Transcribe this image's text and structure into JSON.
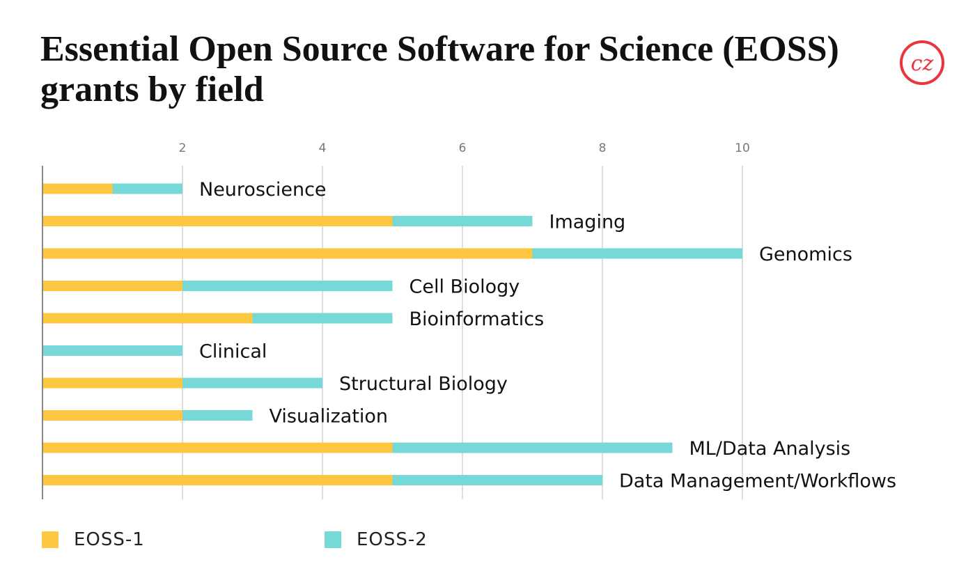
{
  "colors": {
    "series_1": "#FDC742",
    "series_2": "#76D9D8",
    "grid": "#DDDDDD",
    "axis": "#888888",
    "brand": "#E8363C"
  },
  "logo": {
    "icon": "cz-logo-icon",
    "text": "cz"
  },
  "chart_data": {
    "type": "bar",
    "orientation": "horizontal",
    "stacked": true,
    "title": "Essential Open Source Software for Science (EOSS) grants by field",
    "xlabel": "",
    "ylabel": "",
    "xlim": [
      0,
      12
    ],
    "xticks": [
      2,
      4,
      6,
      8,
      10
    ],
    "grid": true,
    "legend_position": "bottom",
    "categories": [
      "Neuroscience",
      "Imaging",
      "Genomics",
      "Cell Biology",
      "Bioinformatics",
      "Clinical",
      "Structural Biology",
      "Visualization",
      "ML/Data Analysis",
      "Data Management/Workflows"
    ],
    "series": [
      {
        "name": "EOSS-1",
        "values": [
          1,
          5,
          7,
          2,
          3,
          0,
          2,
          2,
          5,
          5
        ]
      },
      {
        "name": "EOSS-2",
        "values": [
          1,
          2,
          3,
          3,
          2,
          2,
          2,
          1,
          4,
          3
        ]
      }
    ]
  }
}
